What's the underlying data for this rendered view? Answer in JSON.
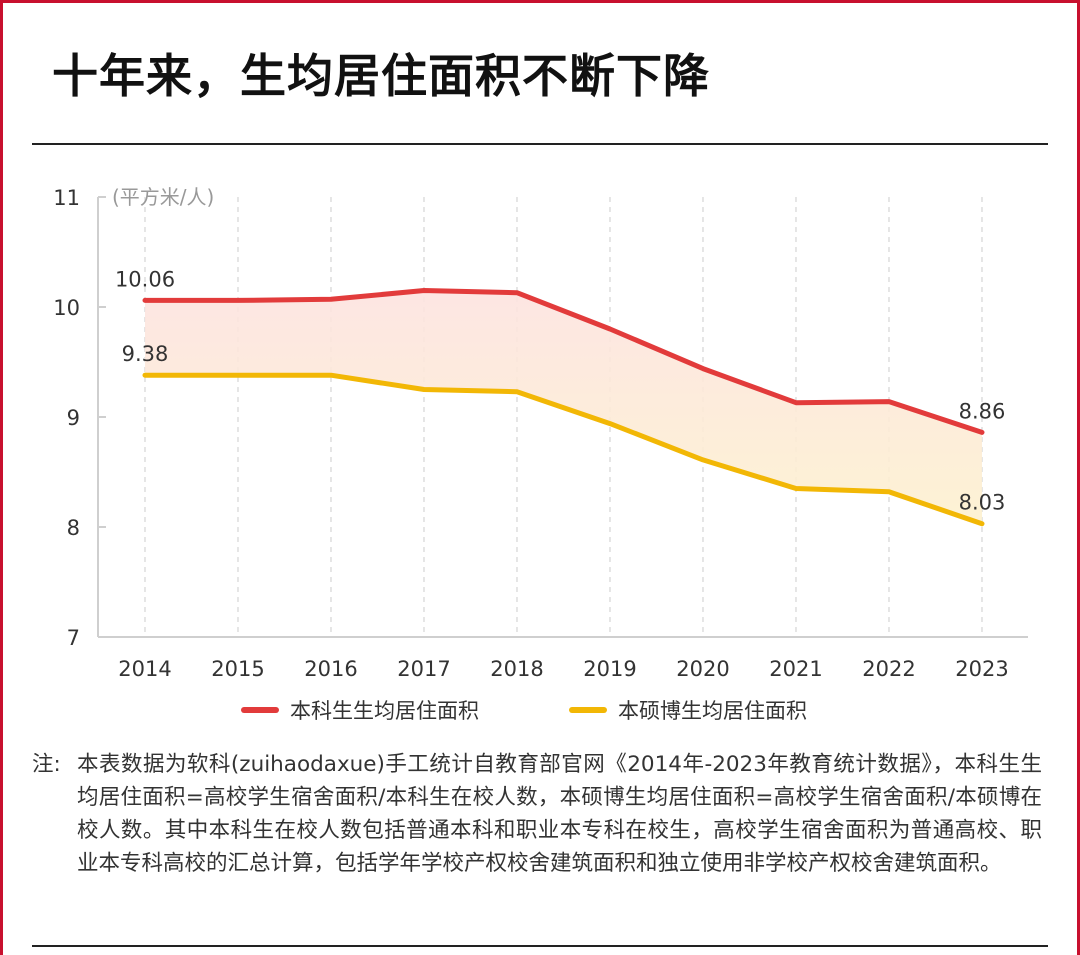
{
  "title": "十年来，生均居住面积不断下降",
  "chart_data": {
    "type": "line",
    "x": [
      2014,
      2015,
      2016,
      2017,
      2018,
      2019,
      2020,
      2021,
      2022,
      2023
    ],
    "series": [
      {
        "name": "本科生生均居住面积",
        "values": [
          10.06,
          10.06,
          10.07,
          10.15,
          10.13,
          9.8,
          9.44,
          9.13,
          9.14,
          8.86
        ],
        "color": "#e23b3b"
      },
      {
        "name": "本硕博生均居住面积",
        "values": [
          9.38,
          9.38,
          9.38,
          9.25,
          9.23,
          8.94,
          8.61,
          8.35,
          8.32,
          8.03
        ],
        "color": "#f2b705"
      }
    ],
    "ylabel": "(平方米/人)",
    "ylim": [
      7,
      11
    ],
    "yticks": [
      "7",
      "8",
      "9",
      "10",
      "11"
    ],
    "xticks": [
      "2014",
      "2015",
      "2016",
      "2017",
      "2018",
      "2019",
      "2020",
      "2021",
      "2022",
      "2023"
    ],
    "annotations": [
      "10.06",
      "9.38",
      "8.86",
      "8.03"
    ],
    "grid": "vertical dashed",
    "legend": "bottom",
    "band_fill": "#fbe9d2"
  },
  "note": {
    "label": "注:",
    "text": "本表数据为软科(zuihaodaxue)手工统计自教育部官网《2014年-2023年教育统计数据》，本科生生均居住面积=高校学生宿舍面积/本科生在校人数，本硕博生均居住面积=高校学生宿舍面积/本硕博在校人数。其中本科生在校人数包括普通本科和职业本专科在校生，高校学生宿舍面积为普通高校、职业本专科高校的汇总计算，包括学年学校产权校舍建筑面积和独立使用非学校产权校舍建筑面积。"
  }
}
